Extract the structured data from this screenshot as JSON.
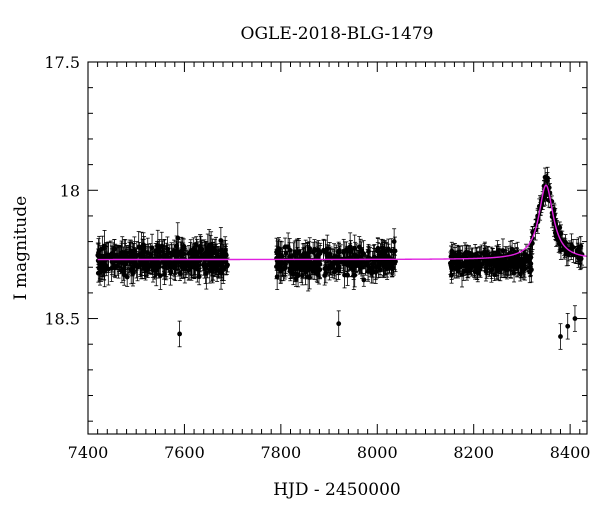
{
  "chart_data": {
    "type": "scatter",
    "title": "OGLE-2018-BLG-1479",
    "xlabel": "HJD - 2450000",
    "ylabel": "I magnitude",
    "xlim": [
      7400,
      8435
    ],
    "ylim": [
      18.95,
      17.5
    ],
    "y_inverted": true,
    "x_major_ticks": [
      7400,
      7600,
      7800,
      8000,
      8200,
      8400
    ],
    "x_major_tick_labels": [
      "7400",
      "7600",
      "7800",
      "8000",
      "8200",
      "8400"
    ],
    "y_major_ticks": [
      17.5,
      18,
      18.5
    ],
    "y_major_tick_labels": [
      "17.5",
      "18",
      "18.5"
    ],
    "grid": false,
    "legend": "none",
    "series": [
      {
        "type": "scatter-errorbar",
        "color": "#000000",
        "segments": [
          {
            "x_range": [
              7420,
              7690
            ],
            "baseline_mag": 18.27,
            "scatter_mag": 0.065,
            "typical_error_mag": 0.045,
            "approx_points": 360
          },
          {
            "x_range": [
              7790,
              8040
            ],
            "baseline_mag": 18.28,
            "scatter_mag": 0.06,
            "typical_error_mag": 0.04,
            "approx_points": 300
          },
          {
            "x_range": [
              8150,
              8320
            ],
            "baseline_mag": 18.28,
            "scatter_mag": 0.05,
            "typical_error_mag": 0.035,
            "approx_points": 250
          },
          {
            "x_range": [
              8320,
              8425
            ],
            "follows_model": true,
            "scatter_mag": 0.05,
            "typical_error_mag": 0.035,
            "approx_points": 90
          }
        ],
        "outliers": [
          {
            "x": 8035,
            "y": 18.2
          },
          {
            "x": 8380,
            "y": 18.57
          },
          {
            "x": 8395,
            "y": 18.53
          },
          {
            "x": 8410,
            "y": 18.5
          },
          {
            "x": 7590,
            "y": 18.56
          },
          {
            "x": 7920,
            "y": 18.52
          }
        ]
      },
      {
        "type": "line",
        "color": "#e020e0",
        "model": {
          "baseline_mag": 18.27,
          "t0": 8350,
          "peak_mag": 17.98,
          "half_width_days": 18
        },
        "x_range": [
          7420,
          8435
        ]
      }
    ]
  }
}
